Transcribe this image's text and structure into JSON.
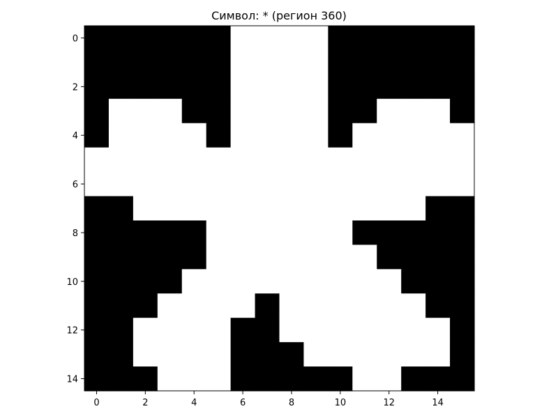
{
  "chart_data": {
    "type": "heatmap",
    "title": "Символ: * (регион 360)",
    "xlabel": "",
    "ylabel": "",
    "xlim": [
      -0.5,
      15.5
    ],
    "ylim": [
      14.5,
      -0.5
    ],
    "x_ticks": [
      0,
      2,
      4,
      6,
      8,
      10,
      12,
      14
    ],
    "y_ticks": [
      0,
      2,
      4,
      6,
      8,
      10,
      12,
      14
    ],
    "grid": false,
    "colormap": "binary",
    "colors": {
      "filled": "#000000",
      "empty": "#ffffff"
    },
    "rows": [
      "1111110000111111",
      "1111110000111111",
      "1111110000111111",
      "1000110000110001",
      "1000010000100000",
      "0000000000000000",
      "0000000000000000",
      "1100000000000011",
      "1111100000011111",
      "1111100000001111",
      "1111000000000111",
      "1110000100000011",
      "1100001100000001",
      "1100001110000001",
      "1110001111100111"
    ]
  }
}
